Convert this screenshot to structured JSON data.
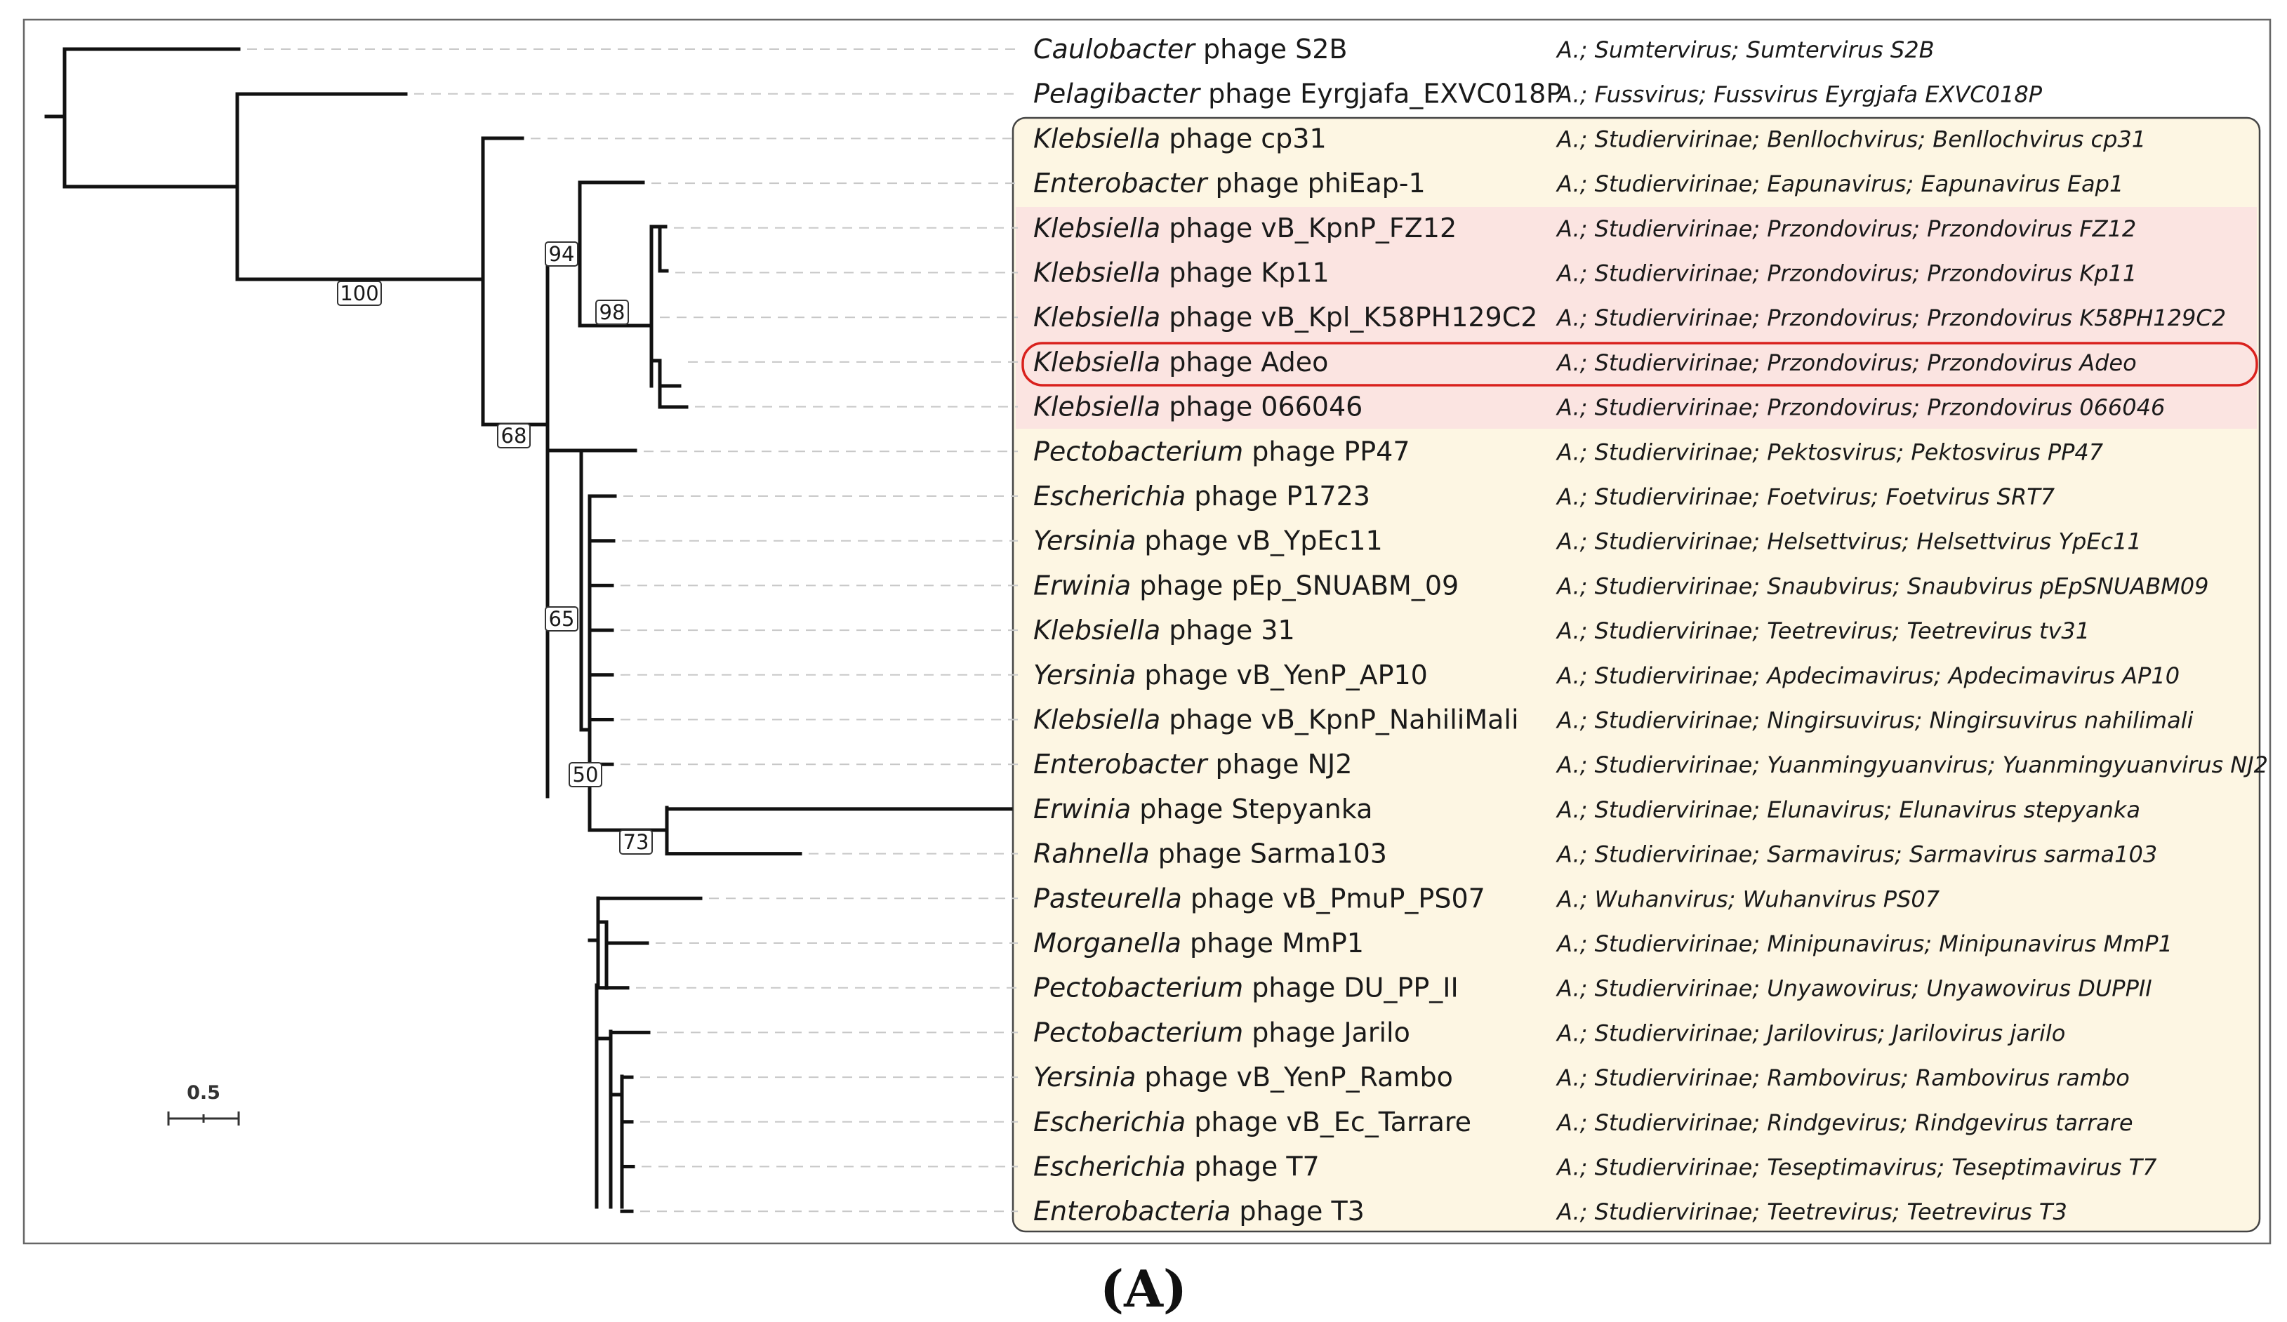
{
  "panel_label": "(A)",
  "scale_bar": {
    "label": "0.5",
    "value": 0.5
  },
  "colors": {
    "branch": "#111111",
    "dashed_guide": "#c8c8c8",
    "studiervirinae_box": "#fdf6e3",
    "przondovirus_highlight": "#fbe4e1",
    "adeo_outline": "#d9211d",
    "frame": "#666666"
  },
  "tips": [
    {
      "genus": "Caulobacter",
      "rest": " phage S2B",
      "taxonomy": "A.; Sumtervirus; Sumtervirus S2B"
    },
    {
      "genus": "Pelagibacter",
      "rest": " phage Eyrgjafa_EXVC018P",
      "taxonomy": "A.; Fussvirus; Fussvirus Eyrgjafa EXVC018P"
    },
    {
      "genus": "Klebsiella",
      "rest": " phage cp31",
      "taxonomy": "A.; Studiervirinae; Benllochvirus; Benllochvirus cp31"
    },
    {
      "genus": "Enterobacter",
      "rest": " phage phiEap-1",
      "taxonomy": "A.; Studiervirinae; Eapunavirus; Eapunavirus Eap1"
    },
    {
      "genus": "Klebsiella",
      "rest": " phage vB_KpnP_FZ12",
      "taxonomy": "A.; Studiervirinae; Przondovirus; Przondovirus FZ12"
    },
    {
      "genus": "Klebsiella",
      "rest": " phage Kp11",
      "taxonomy": "A.; Studiervirinae; Przondovirus; Przondovirus Kp11"
    },
    {
      "genus": "Klebsiella",
      "rest": " phage vB_Kpl_K58PH129C2",
      "taxonomy": "A.; Studiervirinae; Przondovirus; Przondovirus K58PH129C2"
    },
    {
      "genus": "Klebsiella",
      "rest": " phage Adeo",
      "taxonomy": "A.; Studiervirinae; Przondovirus; Przondovirus Adeo"
    },
    {
      "genus": "Klebsiella",
      "rest": " phage 066046",
      "taxonomy": "A.; Studiervirinae; Przondovirus; Przondovirus 066046"
    },
    {
      "genus": "Pectobacterium",
      "rest": " phage PP47",
      "taxonomy": "A.; Studiervirinae; Pektosvirus; Pektosvirus PP47"
    },
    {
      "genus": "Escherichia",
      "rest": " phage P1723",
      "taxonomy": "A.; Studiervirinae; Foetvirus; Foetvirus SRT7"
    },
    {
      "genus": "Yersinia",
      "rest": " phage vB_YpEc11",
      "taxonomy": "A.; Studiervirinae; Helsettvirus; Helsettvirus YpEc11"
    },
    {
      "genus": "Erwinia",
      "rest": " phage pEp_SNUABM_09",
      "taxonomy": "A.; Studiervirinae; Snaubvirus; Snaubvirus pEpSNUABM09"
    },
    {
      "genus": "Klebsiella",
      "rest": " phage 31",
      "taxonomy": "A.; Studiervirinae; Teetrevirus; Teetrevirus tv31"
    },
    {
      "genus": "Yersinia",
      "rest": " phage vB_YenP_AP10",
      "taxonomy": "A.; Studiervirinae; Apdecimavirus; Apdecimavirus AP10"
    },
    {
      "genus": "Klebsiella",
      "rest": " phage vB_KpnP_NahiliMali",
      "taxonomy": "A.; Studiervirinae; Ningirsuvirus; Ningirsuvirus nahilimali"
    },
    {
      "genus": "Enterobacter",
      "rest": " phage NJ2",
      "taxonomy": "A.; Studiervirinae; Yuanmingyuanvirus; Yuanmingyuanvirus NJ2"
    },
    {
      "genus": "Erwinia",
      "rest": " phage Stepyanka",
      "taxonomy": "A.; Studiervirinae; Elunavirus; Elunavirus stepyanka"
    },
    {
      "genus": "Rahnella",
      "rest": " phage Sarma103",
      "taxonomy": "A.; Studiervirinae; Sarmavirus; Sarmavirus sarma103"
    },
    {
      "genus": "Pasteurella",
      "rest": " phage vB_PmuP_PS07",
      "taxonomy": "A.; Wuhanvirus; Wuhanvirus PS07"
    },
    {
      "genus": "Morganella",
      "rest": " phage MmP1",
      "taxonomy": "A.; Studiervirinae; Minipunavirus; Minipunavirus MmP1"
    },
    {
      "genus": "Pectobacterium",
      "rest": " phage DU_PP_II",
      "taxonomy": "A.; Studiervirinae; Unyawovirus; Unyawovirus DUPPII"
    },
    {
      "genus": "Pectobacterium",
      "rest": " phage Jarilo",
      "taxonomy": "A.; Studiervirinae; Jarilovirus; Jarilovirus jarilo"
    },
    {
      "genus": "Yersinia",
      "rest": " phage vB_YenP_Rambo",
      "taxonomy": "A.; Studiervirinae; Rambovirus; Rambovirus rambo"
    },
    {
      "genus": "Escherichia",
      "rest": " phage vB_Ec_Tarrare",
      "taxonomy": "A.; Studiervirinae; Rindgevirus; Rindgevirus tarrare"
    },
    {
      "genus": "Escherichia",
      "rest": " phage T7",
      "taxonomy": "A.; Studiervirinae; Teseptimavirus; Teseptimavirus T7"
    },
    {
      "genus": "Enterobacteria",
      "rest": " phage T3",
      "taxonomy": "A.; Studiervirinae; Teetrevirus; Teetrevirus T3"
    }
  ],
  "bootstrap_values": [
    "100",
    "68",
    "94",
    "98",
    "65",
    "50",
    "73"
  ],
  "groups": {
    "studiervirinae_box_tips": "cp31 to T3",
    "przondovirus_highlight_tips": "vB_KpnP_FZ12 to 066046",
    "outlined_tip": "Klebsiella phage Adeo"
  }
}
